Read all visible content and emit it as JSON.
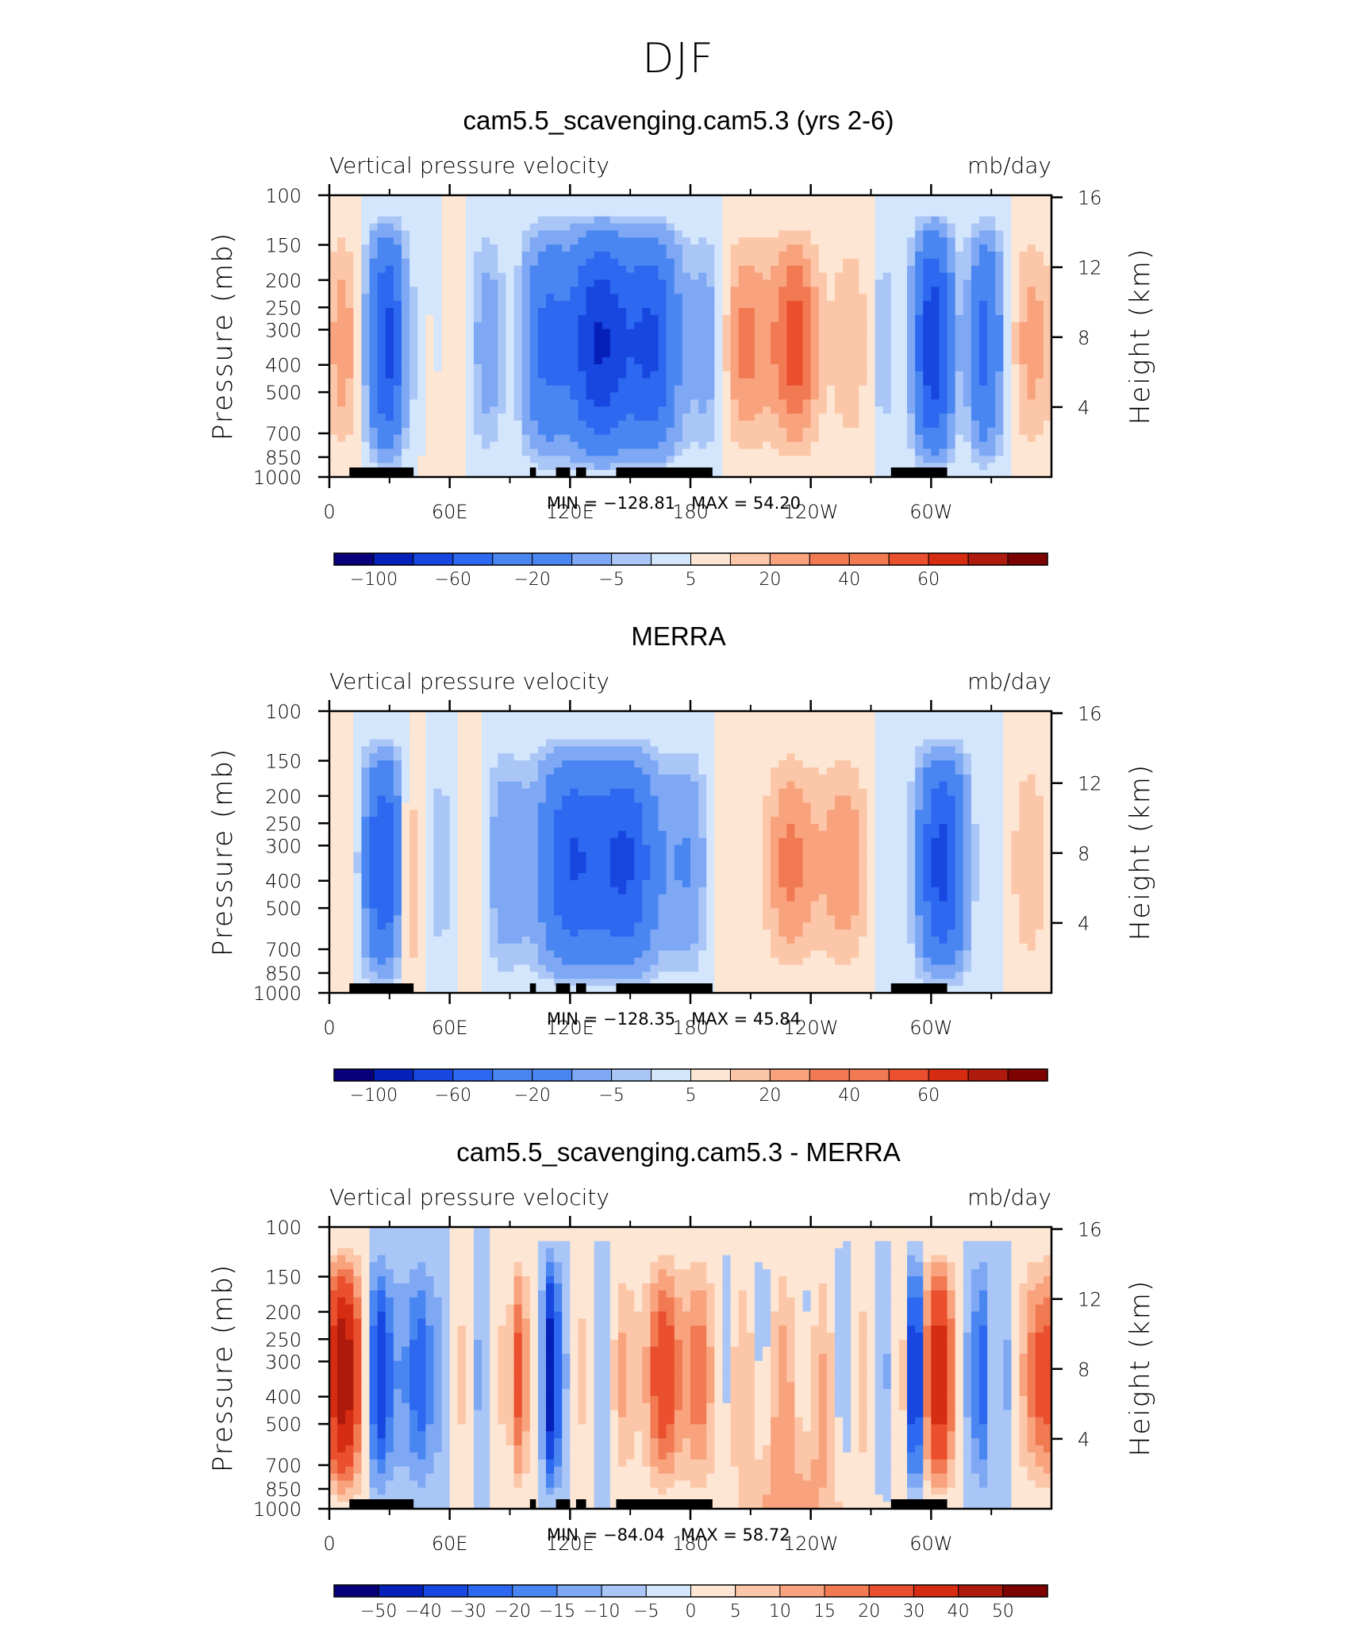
{
  "page_title": "DJF",
  "chart_data": [
    {
      "type": "heatmap",
      "title": "cam5.5_scavenging.cam5.3 (yrs 2-6)",
      "variable": "Vertical pressure velocity",
      "units": "mb/day",
      "ylabel_left": "Pressure (mb)",
      "ylabel_right": "Height (km)",
      "x_ticks": [
        "0",
        "60E",
        "120E",
        "180",
        "120W",
        "60W"
      ],
      "y_ticks_left": [
        "100",
        "150",
        "200",
        "250",
        "300",
        "400",
        "500",
        "700",
        "850",
        "1000"
      ],
      "y_ticks_right": [
        "16",
        "12",
        "8",
        "4"
      ],
      "min_label": "MIN = −128.81",
      "max_label": "MAX = 54.20",
      "min": -128.81,
      "max": 54.2,
      "colorbar_labels": [
        "−100",
        "−60",
        "−20",
        "−5",
        "5",
        "20",
        "40",
        "60"
      ],
      "colorbar_levels": [
        -120,
        -100,
        -80,
        -60,
        -40,
        -20,
        -10,
        -5,
        0,
        5,
        10,
        20,
        30,
        40,
        50,
        60,
        70
      ]
    },
    {
      "type": "heatmap",
      "title": "MERRA",
      "variable": "Vertical pressure velocity",
      "units": "mb/day",
      "ylabel_left": "Pressure (mb)",
      "ylabel_right": "Height (km)",
      "x_ticks": [
        "0",
        "60E",
        "120E",
        "180",
        "120W",
        "60W"
      ],
      "y_ticks_left": [
        "100",
        "150",
        "200",
        "250",
        "300",
        "400",
        "500",
        "700",
        "850",
        "1000"
      ],
      "y_ticks_right": [
        "16",
        "12",
        "8",
        "4"
      ],
      "min_label": "MIN = −128.35",
      "max_label": "MAX = 45.84",
      "min": -128.35,
      "max": 45.84,
      "colorbar_labels": [
        "−100",
        "−60",
        "−20",
        "−5",
        "5",
        "20",
        "40",
        "60"
      ],
      "colorbar_levels": [
        -120,
        -100,
        -80,
        -60,
        -40,
        -20,
        -10,
        -5,
        0,
        5,
        10,
        20,
        30,
        40,
        50,
        60,
        70
      ]
    },
    {
      "type": "heatmap",
      "title": "cam5.5_scavenging.cam5.3 - MERRA",
      "variable": "Vertical pressure velocity",
      "units": "mb/day",
      "ylabel_left": "Pressure (mb)",
      "ylabel_right": "Height (km)",
      "x_ticks": [
        "0",
        "60E",
        "120E",
        "180",
        "120W",
        "60W"
      ],
      "y_ticks_left": [
        "100",
        "150",
        "200",
        "250",
        "300",
        "400",
        "500",
        "700",
        "850",
        "1000"
      ],
      "y_ticks_right": [
        "16",
        "12",
        "8",
        "4"
      ],
      "min_label": "MIN = −84.04",
      "max_label": "MAX = 58.72",
      "min": -84.04,
      "max": 58.72,
      "colorbar_labels": [
        "−50",
        "−40",
        "−30",
        "−20",
        "−15",
        "−10",
        "−5",
        "0",
        "5",
        "10",
        "15",
        "20",
        "30",
        "40",
        "50"
      ],
      "colorbar_levels": [
        -50,
        -40,
        -30,
        -20,
        -15,
        -10,
        -5,
        0,
        5,
        10,
        15,
        20,
        30,
        40,
        50
      ]
    }
  ],
  "colors": {
    "scale": [
      "#08007a",
      "#0520b8",
      "#1747e0",
      "#2c68f0",
      "#4a86f2",
      "#7ea8f4",
      "#aac6f7",
      "#d4e6fb",
      "#fde6d3",
      "#fcc6a8",
      "#f8a27e",
      "#f27a52",
      "#ea4f2e",
      "#d52c12",
      "#ae1a0c",
      "#7d0202"
    ],
    "ocean_blue": "#4a86f2",
    "land_mask": "#000000"
  }
}
